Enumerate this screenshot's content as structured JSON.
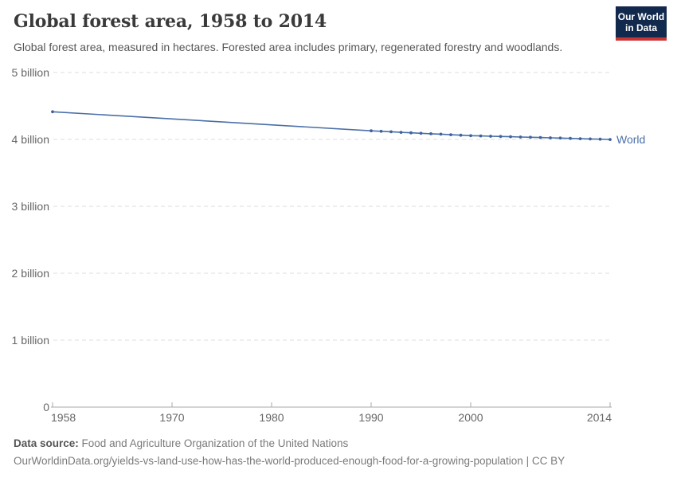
{
  "header": {
    "title": "Global forest area, 1958 to 2014",
    "subtitle": "Global forest area, measured in hectares. Forested area includes primary, regenerated forestry and woodlands."
  },
  "logo": {
    "line1": "Our World",
    "line2": "in Data",
    "background_color": "#12294e",
    "accent_color": "#ca3433"
  },
  "chart_data": {
    "type": "line",
    "title": "Global forest area, 1958 to 2014",
    "xlabel": "",
    "ylabel": "",
    "unit": "hectares",
    "xlim": [
      1958,
      2014
    ],
    "ylim": [
      0,
      5
    ],
    "grid": "horizontal-dashed",
    "legend_position": "end-of-line",
    "x_ticks": [
      1958,
      1970,
      1980,
      1990,
      2000,
      2014
    ],
    "y_ticks": [
      {
        "value": 0,
        "label": "0"
      },
      {
        "value": 1,
        "label": "1 billion"
      },
      {
        "value": 2,
        "label": "2 billion"
      },
      {
        "value": 3,
        "label": "3 billion"
      },
      {
        "value": 4,
        "label": "4 billion"
      },
      {
        "value": 5,
        "label": "5 billion"
      }
    ],
    "series": [
      {
        "name": "World",
        "color": "#4a6fa8",
        "marker_color": "#3f649c",
        "points_unit": "billion hectares",
        "points": [
          [
            1958,
            4.413
          ],
          [
            1990,
            4.128
          ],
          [
            1991,
            4.121
          ],
          [
            1992,
            4.114
          ],
          [
            1993,
            4.106
          ],
          [
            1994,
            4.099
          ],
          [
            1995,
            4.092
          ],
          [
            1996,
            4.085
          ],
          [
            1997,
            4.078
          ],
          [
            1998,
            4.07
          ],
          [
            1999,
            4.063
          ],
          [
            2000,
            4.056
          ],
          [
            2001,
            4.052
          ],
          [
            2002,
            4.048
          ],
          [
            2003,
            4.044
          ],
          [
            2004,
            4.04
          ],
          [
            2005,
            4.036
          ],
          [
            2006,
            4.032
          ],
          [
            2007,
            4.028
          ],
          [
            2008,
            4.024
          ],
          [
            2009,
            4.02
          ],
          [
            2010,
            4.016
          ],
          [
            2011,
            4.011
          ],
          [
            2012,
            4.007
          ],
          [
            2013,
            4.003
          ],
          [
            2014,
            3.999
          ]
        ]
      }
    ]
  },
  "footer": {
    "source_label": "Data source:",
    "source_value": "Food and Agriculture Organization of the United Nations",
    "link": "OurWorldinData.org/yields-vs-land-use-how-has-the-world-produced-enough-food-for-a-growing-population | CC BY"
  }
}
